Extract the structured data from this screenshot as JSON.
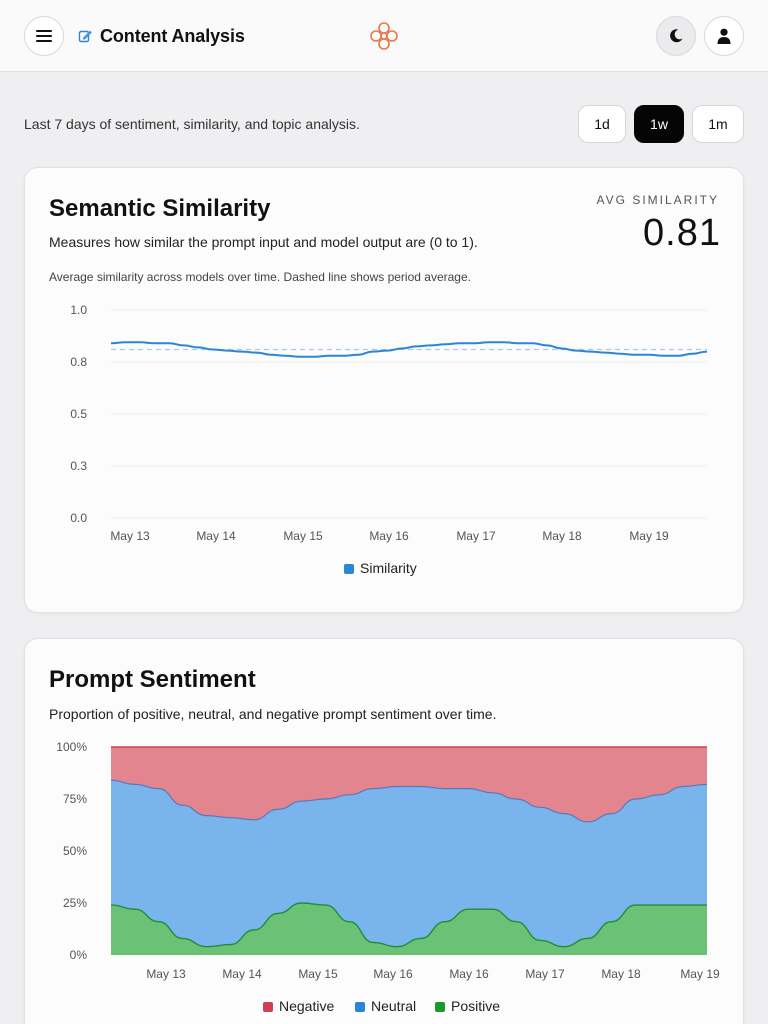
{
  "header": {
    "title": "Content Analysis",
    "icons": {
      "menu": "menu-icon",
      "edit": "edit-icon",
      "logo": "logo-icon",
      "theme": "moon-icon",
      "user": "user-icon"
    }
  },
  "summary": "Last 7 days of sentiment, similarity, and topic analysis.",
  "ranges": [
    {
      "label": "1d",
      "active": false
    },
    {
      "label": "1w",
      "active": true
    },
    {
      "label": "1m",
      "active": false
    }
  ],
  "similarity_card": {
    "title": "Semantic Similarity",
    "description": "Measures how similar the prompt input and model output are (0 to 1).",
    "note": "Average similarity across models over time. Dashed line shows period average.",
    "avg_label": "AVG SIMILARITY",
    "avg_value": "0.81"
  },
  "sentiment_card": {
    "title": "Prompt Sentiment",
    "description": "Proportion of positive, neutral, and negative prompt sentiment over time."
  },
  "colors": {
    "similarity": "#2b86d6",
    "negative": "#e3858f",
    "negative_line": "#cc4455",
    "neutral": "#7ab4ec",
    "neutral_line": "#5a78b8",
    "positive": "#6bc277",
    "positive_line": "#1f8f35",
    "legend_negative": "#d04055",
    "legend_neutral": "#2b86d6",
    "legend_positive": "#1a9a2e"
  },
  "chart_data": [
    {
      "type": "line",
      "x_ticks": [
        "May 13",
        "May 14",
        "May 15",
        "May 16",
        "May 17",
        "May 18",
        "May 19"
      ],
      "y_ticks": [
        "1.0",
        "0.8",
        "0.5",
        "0.3",
        "0.0"
      ],
      "ylim": [
        0,
        1
      ],
      "average": 0.81,
      "series": [
        {
          "name": "Similarity",
          "values": [
            0.84,
            0.845,
            0.845,
            0.84,
            0.84,
            0.83,
            0.82,
            0.81,
            0.805,
            0.8,
            0.795,
            0.785,
            0.78,
            0.775,
            0.775,
            0.78,
            0.78,
            0.785,
            0.8,
            0.805,
            0.815,
            0.825,
            0.83,
            0.835,
            0.84,
            0.84,
            0.845,
            0.845,
            0.84,
            0.84,
            0.83,
            0.815,
            0.805,
            0.8,
            0.795,
            0.79,
            0.785,
            0.785,
            0.78,
            0.78,
            0.79,
            0.8
          ]
        }
      ]
    },
    {
      "type": "area",
      "stacked": true,
      "x_ticks": [
        "May 13",
        "May 14",
        "May 15",
        "May 16",
        "May 16",
        "May 17",
        "May 18",
        "May 19"
      ],
      "y_ticks": [
        "100%",
        "75%",
        "50%",
        "25%",
        "0%"
      ],
      "ylim": [
        0,
        100
      ],
      "legend": [
        "Negative",
        "Neutral",
        "Positive"
      ],
      "x": [
        0,
        4,
        8,
        12,
        16,
        20,
        24,
        28,
        32,
        36,
        40,
        44,
        48,
        52,
        56,
        60,
        64,
        68,
        72,
        76,
        80,
        84,
        88,
        92,
        96,
        100
      ],
      "series": [
        {
          "name": "Positive",
          "values": [
            24,
            22,
            16,
            8,
            4,
            5,
            12,
            20,
            25,
            24,
            16,
            6,
            4,
            8,
            16,
            22,
            22,
            16,
            7,
            4,
            8,
            16,
            24,
            24,
            24,
            24
          ]
        },
        {
          "name": "Neutral",
          "values": [
            60,
            60,
            64,
            64,
            63,
            61,
            53,
            50,
            49,
            51,
            61,
            74,
            77,
            73,
            64,
            58,
            56,
            59,
            64,
            64,
            56,
            52,
            51,
            53,
            57,
            58
          ]
        },
        {
          "name": "Negative",
          "values": [
            16,
            18,
            20,
            28,
            33,
            34,
            35,
            30,
            26,
            25,
            23,
            20,
            19,
            19,
            20,
            20,
            22,
            25,
            29,
            32,
            36,
            32,
            25,
            23,
            19,
            18
          ]
        }
      ]
    }
  ]
}
